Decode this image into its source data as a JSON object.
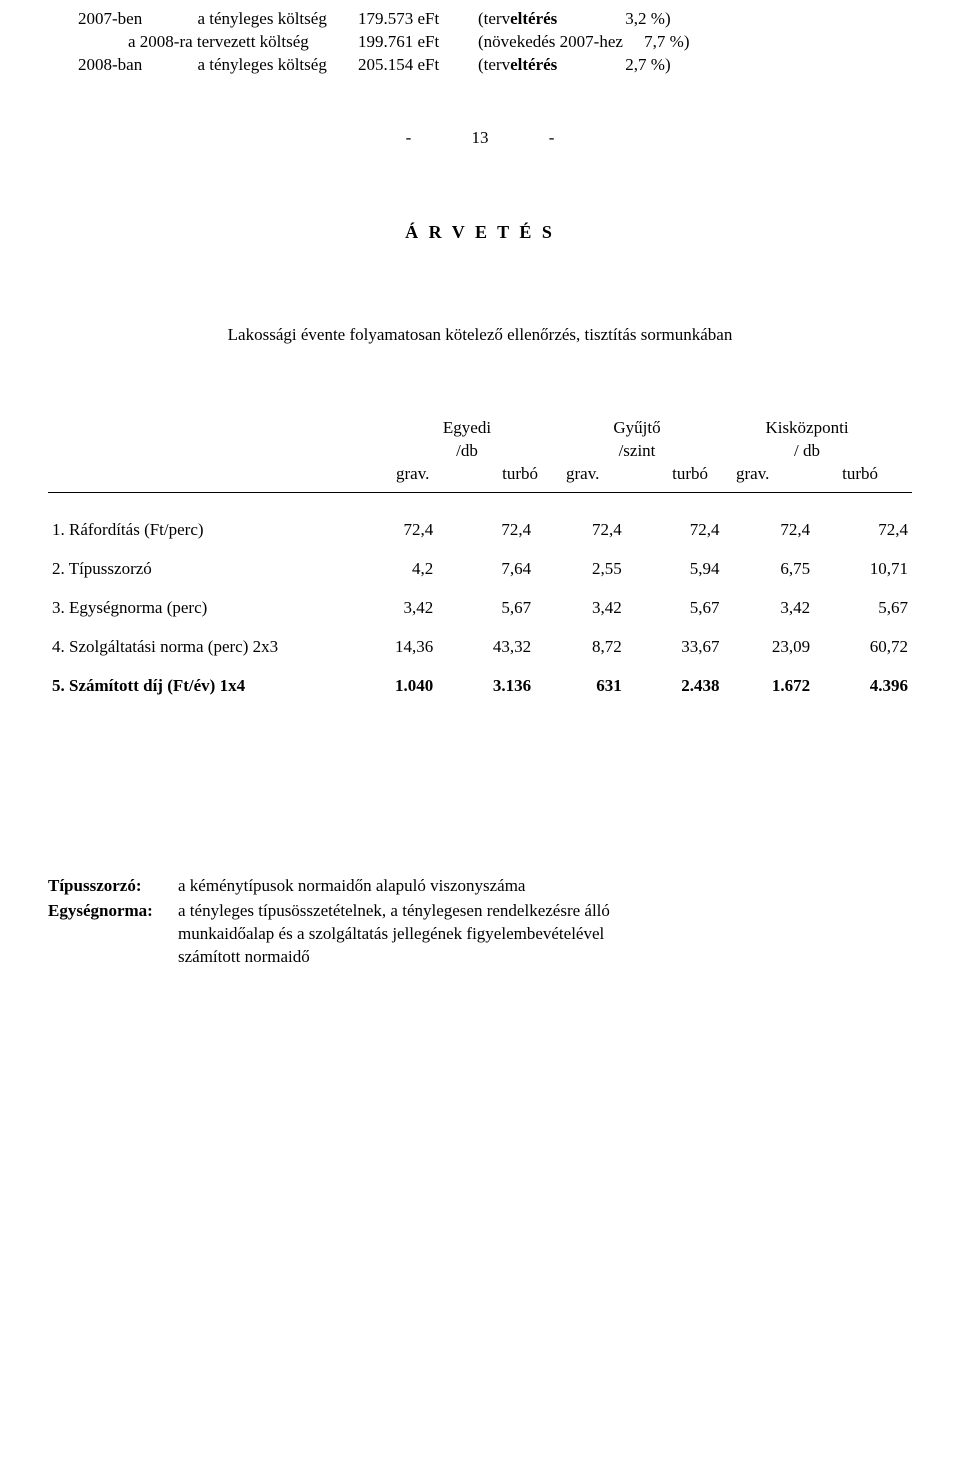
{
  "intro": {
    "r1": {
      "a": "2007-ben",
      "b": "a tényleges költség",
      "c": "179.573 eFt",
      "d": "(terv",
      "d2": "eltérés",
      "e": "3,2 %)"
    },
    "r2": {
      "a": "",
      "b": "a 2008-ra tervezett  költség",
      "c": "199.761 eFt",
      "d": "(növekedés 2007-hez",
      "e": "7,7 %)"
    },
    "r3": {
      "a": "2008-ban",
      "b": "a tényleges költség",
      "c": "205.154 eFt",
      "d": "(terv",
      "d2": "eltérés",
      "e": "2,7 %)"
    }
  },
  "pageNum": {
    "dashL": "-",
    "n": "13",
    "dashR": "-"
  },
  "title": "Á R V E T É S",
  "subtitle": {
    "p1": "Lakossági  évente folyamatosan kötelező ellen",
    "p2": "őrzés, tisztítás",
    "p3": "  sormunkában"
  },
  "colhead": {
    "c1": {
      "t": "Egyedi",
      "m": "/db"
    },
    "c2": {
      "t": "Gyűjtő",
      "m": "/szint"
    },
    "c3": {
      "t": "Kisközponti",
      "m": "/ db"
    },
    "sub1": "grav.",
    "sub2": "turbó"
  },
  "rows": [
    {
      "label": "1. Ráfordítás (Ft/perc)",
      "v": [
        "72,4",
        "72,4",
        "72,4",
        "72,4",
        "72,4",
        "72,4"
      ]
    },
    {
      "label": "2. Típusszorzó",
      "v": [
        "4,2",
        "7,64",
        "2,55",
        "5,94",
        "6,75",
        "10,71"
      ]
    },
    {
      "label": "3. Egységnorma (perc)",
      "v": [
        "3,42",
        "5,67",
        "3,42",
        "5,67",
        "3,42",
        "5,67"
      ]
    },
    {
      "label": "4. Szolgáltatási  norma (perc) 2x3",
      "v": [
        "14,36",
        "43,32",
        "8,72",
        "33,67",
        "23,09",
        "60,72"
      ]
    },
    {
      "label": "5. Számított díj (Ft/év) 1x4",
      "bold": true,
      "v": [
        "1.040",
        "3.136",
        "631",
        "2.438",
        "1.672",
        "4.396"
      ]
    }
  ],
  "defs": {
    "d1": {
      "term": "Típusszorzó:",
      "body": "a kéménytípusok normaidőn alapuló viszonyszáma"
    },
    "d2": {
      "term": "Egységnorma:",
      "body1": "a tényleges típusösszetételnek, a ténylegesen rendelkezésre álló",
      "body2": "munkaidőalap és a szolgáltatás jellegének figyelembevételével",
      "body3": "számított normaidő"
    }
  }
}
